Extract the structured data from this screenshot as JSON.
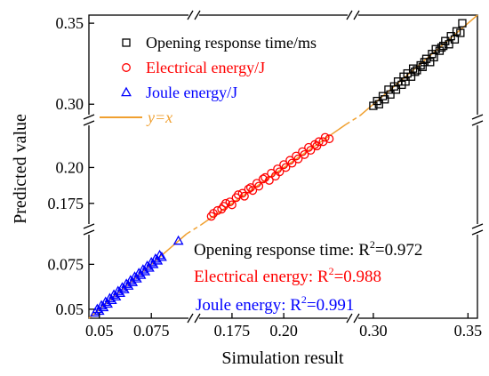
{
  "chart_data": {
    "type": "scatter",
    "xlabel": "Simulation result",
    "ylabel": "Predicted value",
    "axis_segments": [
      {
        "range": [
          0.045,
          0.092
        ],
        "ticks": [
          0.05,
          0.075
        ],
        "tick_labels": [
          "0.05",
          "0.075"
        ]
      },
      {
        "range": [
          0.16,
          0.23
        ],
        "ticks": [
          0.175,
          0.2
        ],
        "tick_labels": [
          "0.175",
          "0.20"
        ]
      },
      {
        "range": [
          0.293,
          0.355
        ],
        "ticks": [
          0.3,
          0.35
        ],
        "tick_labels": [
          "0.30",
          "0.35"
        ]
      }
    ],
    "reference_line": {
      "label": "y=x",
      "color": "#f0a030"
    },
    "series": [
      {
        "name": "Opening response time/ms",
        "marker": "square",
        "color": "#000000",
        "segment": 2,
        "r2_label": "Opening response time: R",
        "r2_value": "=0.972",
        "points": [
          [
            0.3,
            0.299
          ],
          [
            0.302,
            0.302
          ],
          [
            0.303,
            0.3
          ],
          [
            0.305,
            0.305
          ],
          [
            0.306,
            0.303
          ],
          [
            0.308,
            0.309
          ],
          [
            0.309,
            0.306
          ],
          [
            0.311,
            0.311
          ],
          [
            0.312,
            0.309
          ],
          [
            0.313,
            0.314
          ],
          [
            0.315,
            0.312
          ],
          [
            0.316,
            0.317
          ],
          [
            0.317,
            0.314
          ],
          [
            0.318,
            0.319
          ],
          [
            0.32,
            0.317
          ],
          [
            0.321,
            0.322
          ],
          [
            0.322,
            0.32
          ],
          [
            0.323,
            0.321
          ],
          [
            0.325,
            0.324
          ],
          [
            0.326,
            0.323
          ],
          [
            0.327,
            0.326
          ],
          [
            0.328,
            0.328
          ],
          [
            0.33,
            0.326
          ],
          [
            0.331,
            0.331
          ],
          [
            0.332,
            0.329
          ],
          [
            0.333,
            0.334
          ],
          [
            0.335,
            0.333
          ],
          [
            0.336,
            0.335
          ],
          [
            0.337,
            0.336
          ],
          [
            0.338,
            0.339
          ],
          [
            0.34,
            0.337
          ],
          [
            0.341,
            0.342
          ],
          [
            0.343,
            0.34
          ],
          [
            0.344,
            0.345
          ],
          [
            0.346,
            0.344
          ],
          [
            0.347,
            0.35
          ]
        ]
      },
      {
        "name": "Electrical energy/J",
        "marker": "circle",
        "color": "#ff0000",
        "segment": 1,
        "r2_label": "Electrical energy: R",
        "r2_value": "=0.988",
        "points": [
          [
            0.165,
            0.166
          ],
          [
            0.166,
            0.168
          ],
          [
            0.168,
            0.17
          ],
          [
            0.17,
            0.171
          ],
          [
            0.171,
            0.173
          ],
          [
            0.172,
            0.175
          ],
          [
            0.174,
            0.176
          ],
          [
            0.175,
            0.174
          ],
          [
            0.177,
            0.179
          ],
          [
            0.178,
            0.181
          ],
          [
            0.18,
            0.182
          ],
          [
            0.181,
            0.18
          ],
          [
            0.183,
            0.185
          ],
          [
            0.184,
            0.186
          ],
          [
            0.185,
            0.184
          ],
          [
            0.187,
            0.189
          ],
          [
            0.188,
            0.187
          ],
          [
            0.19,
            0.192
          ],
          [
            0.191,
            0.193
          ],
          [
            0.193,
            0.191
          ],
          [
            0.194,
            0.196
          ],
          [
            0.196,
            0.194
          ],
          [
            0.197,
            0.199
          ],
          [
            0.198,
            0.197
          ],
          [
            0.2,
            0.202
          ],
          [
            0.201,
            0.2
          ],
          [
            0.203,
            0.205
          ],
          [
            0.204,
            0.203
          ],
          [
            0.206,
            0.208
          ],
          [
            0.207,
            0.206
          ],
          [
            0.209,
            0.211
          ],
          [
            0.21,
            0.209
          ],
          [
            0.212,
            0.214
          ],
          [
            0.213,
            0.212
          ],
          [
            0.215,
            0.216
          ],
          [
            0.216,
            0.215
          ],
          [
            0.217,
            0.218
          ],
          [
            0.219,
            0.218
          ],
          [
            0.22,
            0.221
          ],
          [
            0.222,
            0.22
          ]
        ]
      },
      {
        "name": "Joule energy/J",
        "marker": "triangle",
        "color": "#0000ff",
        "segment": 0,
        "r2_label": "Joule energy: R",
        "r2_value": "=0.991",
        "points": [
          [
            0.048,
            0.048
          ],
          [
            0.049,
            0.05
          ],
          [
            0.05,
            0.049
          ],
          [
            0.051,
            0.052
          ],
          [
            0.052,
            0.051
          ],
          [
            0.053,
            0.054
          ],
          [
            0.054,
            0.053
          ],
          [
            0.055,
            0.056
          ],
          [
            0.056,
            0.055
          ],
          [
            0.057,
            0.058
          ],
          [
            0.058,
            0.057
          ],
          [
            0.059,
            0.06
          ],
          [
            0.06,
            0.059
          ],
          [
            0.061,
            0.062
          ],
          [
            0.062,
            0.061
          ],
          [
            0.063,
            0.064
          ],
          [
            0.064,
            0.063
          ],
          [
            0.065,
            0.066
          ],
          [
            0.066,
            0.065
          ],
          [
            0.067,
            0.068
          ],
          [
            0.068,
            0.067
          ],
          [
            0.069,
            0.07
          ],
          [
            0.07,
            0.069
          ],
          [
            0.071,
            0.072
          ],
          [
            0.072,
            0.071
          ],
          [
            0.073,
            0.074
          ],
          [
            0.074,
            0.073
          ],
          [
            0.075,
            0.076
          ],
          [
            0.076,
            0.075
          ],
          [
            0.077,
            0.078
          ],
          [
            0.078,
            0.077
          ],
          [
            0.079,
            0.08
          ],
          [
            0.08,
            0.079
          ],
          [
            0.088,
            0.088
          ]
        ]
      }
    ],
    "r2_superscript": "2"
  }
}
